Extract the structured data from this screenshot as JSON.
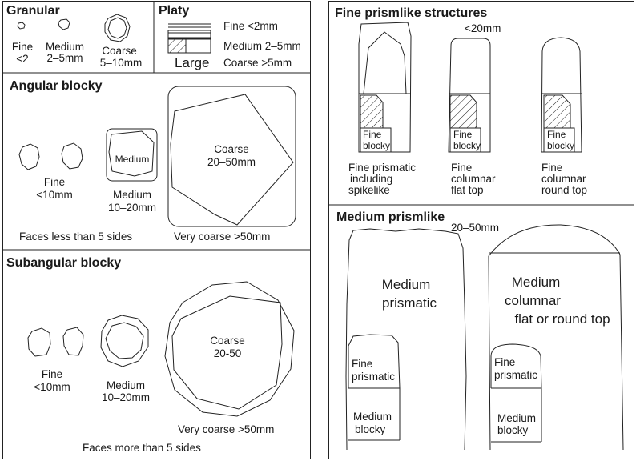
{
  "granular": {
    "heading": "Granular",
    "fine_label": "Fine",
    "fine_size": "<2",
    "medium_label": "Medium",
    "medium_size": "2–5mm",
    "coarse_label": "Coarse",
    "coarse_size": "5–10mm"
  },
  "platy": {
    "heading": "Platy",
    "fine": "Fine <2mm",
    "medium": "Medium 2–5mm",
    "coarse": "Coarse >5mm",
    "large_label": "Large"
  },
  "angular_blocky": {
    "heading": "Angular blocky",
    "fine_label": "Fine",
    "fine_size": "<10mm",
    "medium_inner": "Medium",
    "medium_label": "Medium",
    "medium_size": "10–20mm",
    "coarse_label": "Coarse",
    "coarse_size": "20–50mm",
    "faces_note": "Faces less than 5 sides",
    "very_coarse": "Very coarse >50mm"
  },
  "subangular_blocky": {
    "heading": "Subangular blocky",
    "fine_label": "Fine",
    "fine_size": "<10mm",
    "medium_label": "Medium",
    "medium_size": "10–20mm",
    "coarse_label": "Coarse",
    "coarse_size": "20-50",
    "very_coarse": "Very coarse >50mm",
    "faces_note": "Faces more than 5 sides"
  },
  "fine_prismlike": {
    "heading": "Fine prismlike structures",
    "size": "<20mm",
    "blocky_line1": "Fine",
    "blocky_line2": "blocky",
    "col1": [
      "Fine prismatic",
      "including",
      "spikelike"
    ],
    "col2": [
      "Fine",
      "columnar",
      "flat top"
    ],
    "col3": [
      "Fine",
      "columnar",
      "round top"
    ]
  },
  "medium_prismlike": {
    "heading": "Medium prismlike",
    "size": "20–50mm",
    "prismatic": [
      "Medium",
      "prismatic"
    ],
    "columnar": [
      "Medium",
      "columnar",
      "flat or round top"
    ],
    "fine_prismatic": [
      "Fine",
      "prismatic"
    ],
    "medium_blocky": [
      "Medium",
      "blocky"
    ]
  }
}
